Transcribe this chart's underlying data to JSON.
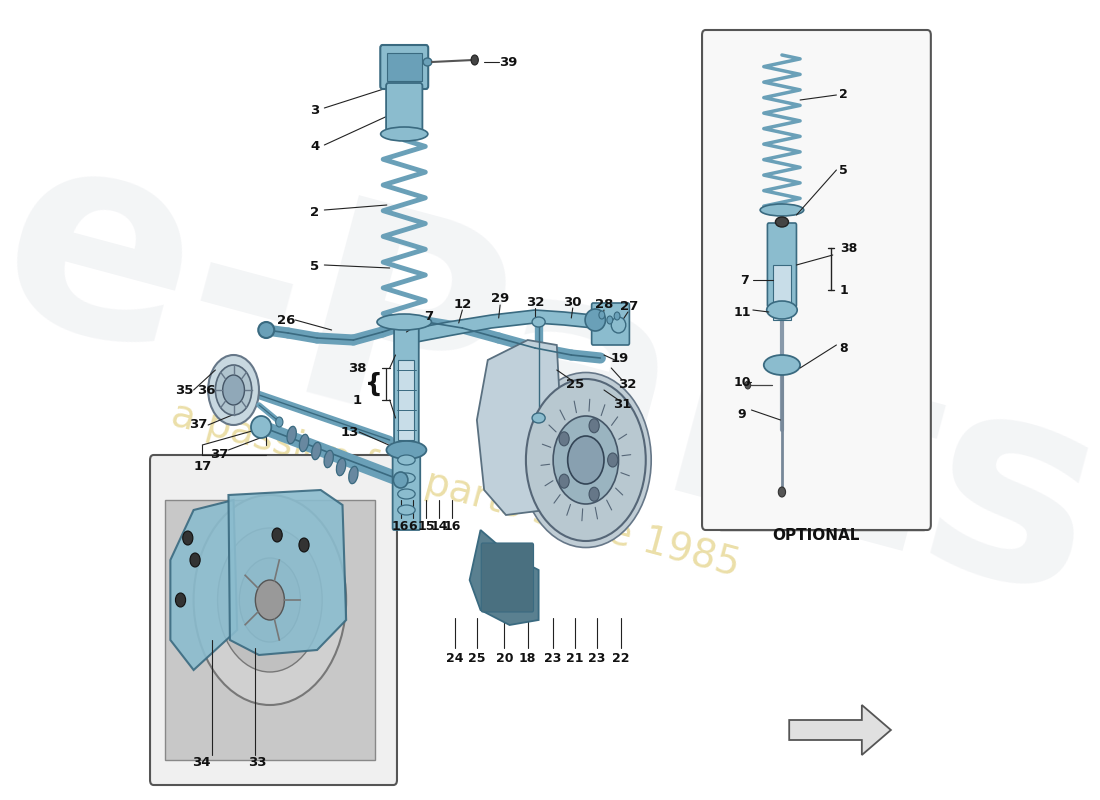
{
  "bg_color": "#ffffff",
  "blue_light": "#8bbcce",
  "blue_mid": "#6aa0b8",
  "blue_dark": "#3a6a80",
  "gray_light": "#d8d8d8",
  "gray_mid": "#a0a8b0",
  "line_color": "#222222",
  "watermark_yellow": "#d4b840",
  "watermark_gray": "#c0c8d0",
  "fig_w": 11.0,
  "fig_h": 8.0,
  "dpi": 100,
  "xlim": [
    0,
    1100
  ],
  "ylim": [
    0,
    800
  ]
}
